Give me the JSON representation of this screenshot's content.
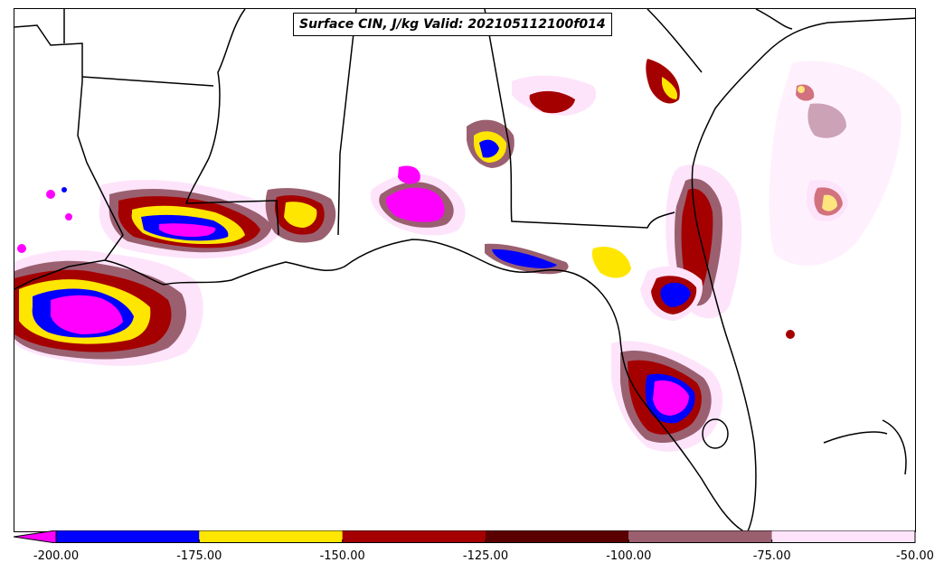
{
  "title": "Surface CIN, J/kg Valid: 202105112100f014",
  "colorbar": {
    "extend": "min",
    "bins": [
      {
        "from": -200,
        "to": -175,
        "color": "#0000ff"
      },
      {
        "from": -175,
        "to": -150,
        "color": "#ffe600"
      },
      {
        "from": -150,
        "to": -125,
        "color": "#a50000"
      },
      {
        "from": -125,
        "to": -100,
        "color": "#5a0000"
      },
      {
        "from": -100,
        "to": -75,
        "color": "#9a6070"
      },
      {
        "from": -75,
        "to": -50,
        "color": "#fde4fb"
      }
    ],
    "under_color": "#ff00ff",
    "tick_values": [
      -200,
      -175,
      -150,
      -125,
      -100,
      -75,
      -50
    ],
    "tick_labels": [
      "-200.00",
      "-175.00",
      "-150.00",
      "-125.00",
      "-100.00",
      "-75.00",
      "-50.00"
    ]
  },
  "legend_colors": {
    "min_extend": "#ff00ff",
    "bin_1": "#0000ff",
    "bin_2": "#ffe600",
    "bin_3": "#a50000",
    "bin_4": "#5a0000",
    "bin_5": "#9a6070",
    "bin_6": "#fde4fb"
  }
}
